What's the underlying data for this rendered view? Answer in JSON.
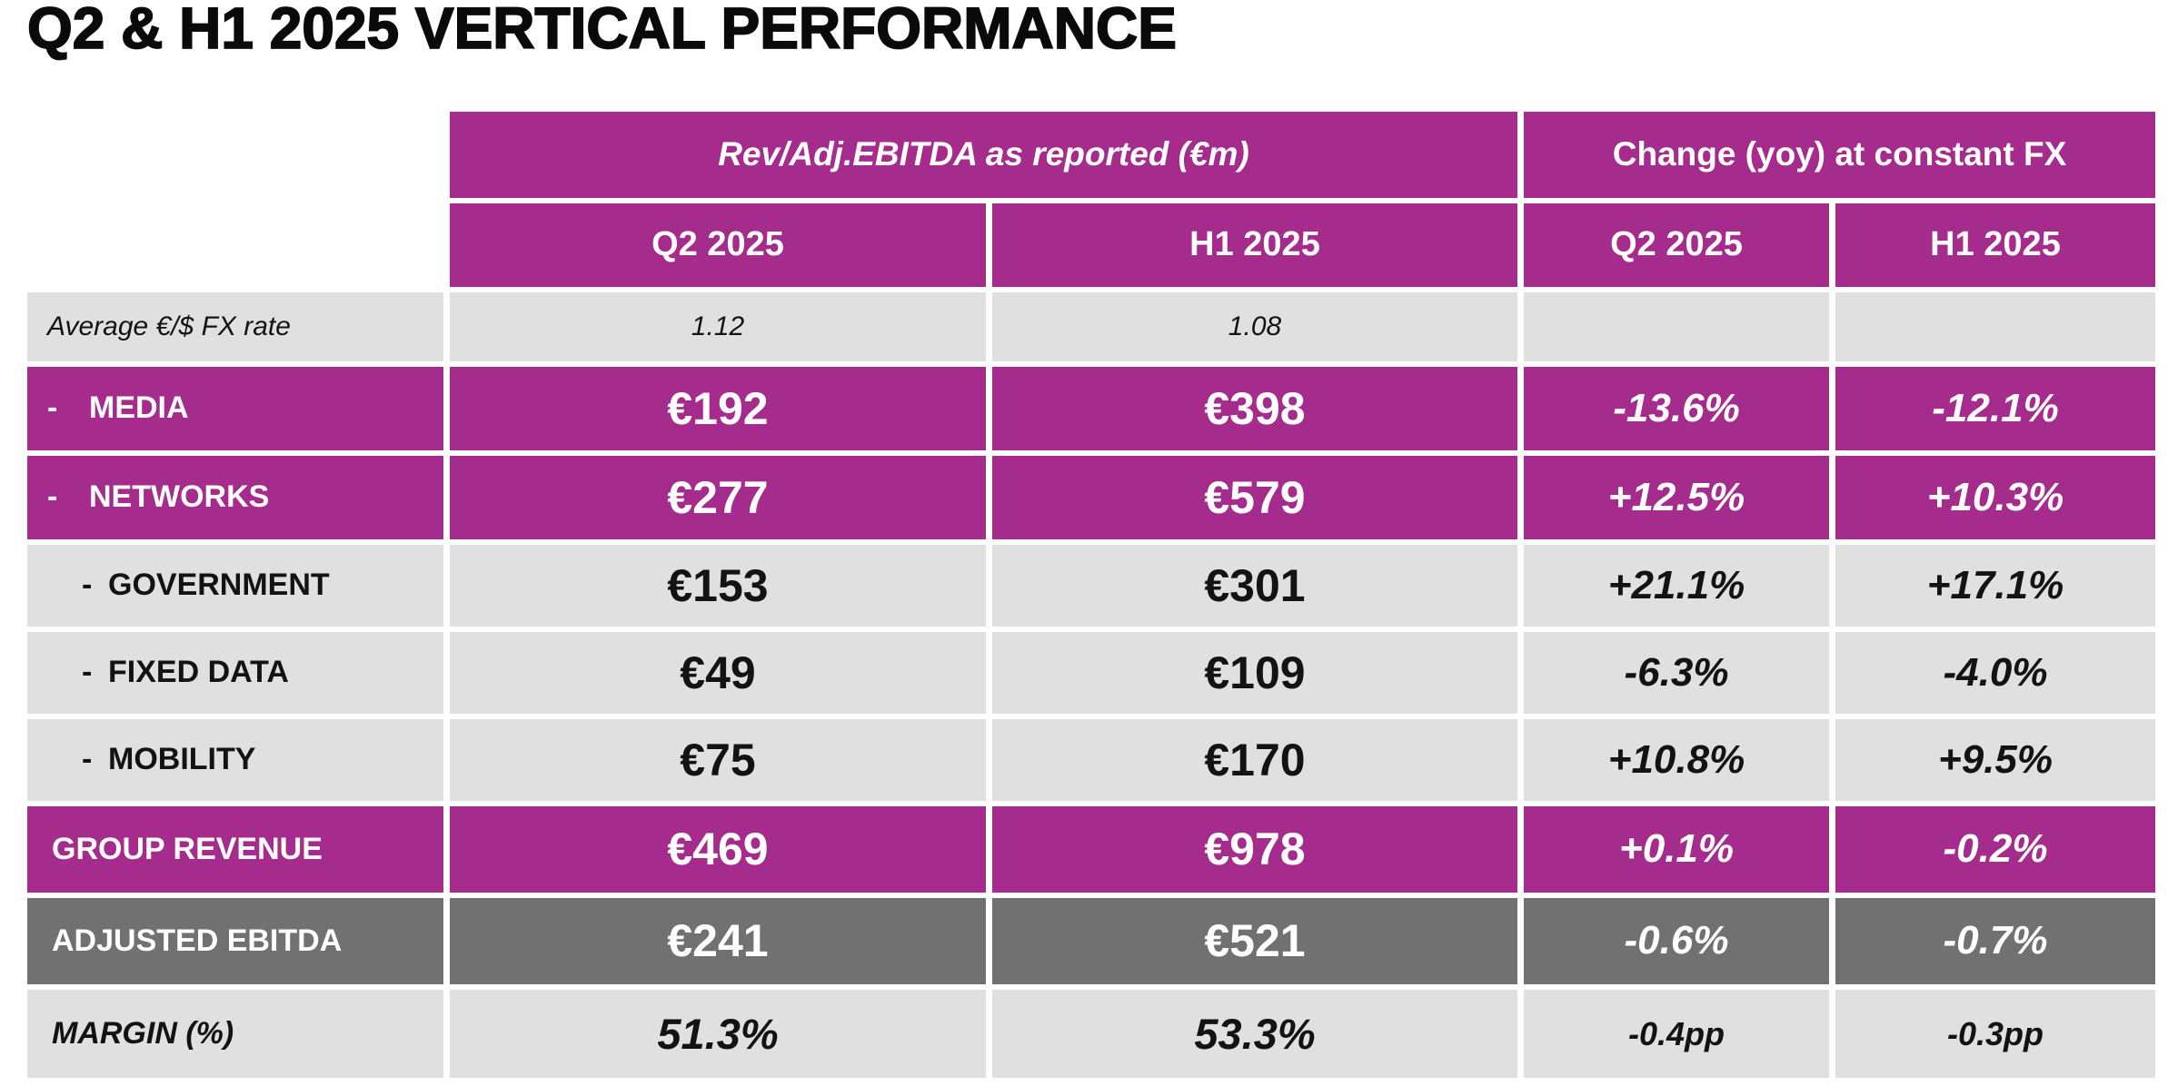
{
  "title": "Q2 & H1 2025 VERTICAL PERFORMANCE",
  "colors": {
    "accent_magenta": "#A52C8C",
    "dark_gray_row": "#717171",
    "light_gray_row": "#E0E0E0",
    "divider_white": "#FFFFFF",
    "text_dark": "#131313",
    "text_light": "#FFFFFF"
  },
  "table": {
    "group_headers": {
      "reported": "Rev/Adj.EBITDA as reported (€m)",
      "change": "Change (yoy) at constant FX"
    },
    "column_headers": {
      "reported_q2": "Q2 2025",
      "reported_h1": "H1 2025",
      "change_q2": "Q2 2025",
      "change_h1": "H1 2025"
    },
    "fx_row": {
      "label": "Average €/$ FX rate",
      "q2": "1.12",
      "h1": "1.08"
    },
    "rows": [
      {
        "id": "media",
        "bullet": "-",
        "label": "MEDIA",
        "q2": "€192",
        "h1": "€398",
        "change_q2": "-13.6%",
        "change_h1": "-12.1%"
      },
      {
        "id": "networks",
        "bullet": "-",
        "label": "NETWORKS",
        "q2": "€277",
        "h1": "€579",
        "change_q2": "+12.5%",
        "change_h1": "+10.3%"
      },
      {
        "id": "government",
        "bullet": "-",
        "label": "GOVERNMENT",
        "q2": "€153",
        "h1": "€301",
        "change_q2": "+21.1%",
        "change_h1": "+17.1%"
      },
      {
        "id": "fixed-data",
        "bullet": "-",
        "label": "FIXED DATA",
        "q2": "€49",
        "h1": "€109",
        "change_q2": "-6.3%",
        "change_h1": "-4.0%"
      },
      {
        "id": "mobility",
        "bullet": "-",
        "label": "MOBILITY",
        "q2": "€75",
        "h1": "€170",
        "change_q2": "+10.8%",
        "change_h1": "+9.5%"
      },
      {
        "id": "group-revenue",
        "label": "GROUP REVENUE",
        "q2": "€469",
        "h1": "€978",
        "change_q2": "+0.1%",
        "change_h1": "-0.2%"
      },
      {
        "id": "adjusted-ebitda",
        "label": "ADJUSTED EBITDA",
        "q2": "€241",
        "h1": "€521",
        "change_q2": "-0.6%",
        "change_h1": "-0.7%"
      },
      {
        "id": "margin",
        "label": "MARGIN (%)",
        "q2": "51.3%",
        "h1": "53.3%",
        "change_q2": "-0.4pp",
        "change_h1": "-0.3pp"
      }
    ]
  }
}
